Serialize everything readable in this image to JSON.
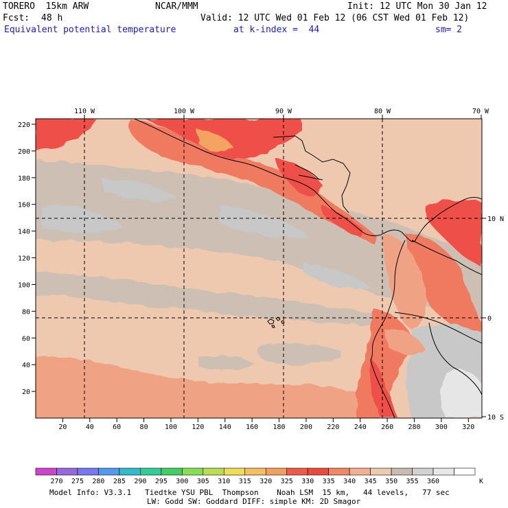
{
  "header": {
    "model": "TORERO  15km ARW",
    "org": "NCAR/MMM",
    "init": "Init: 12 UTC Mon 30 Jan 12",
    "fcst_label": "Fcst:",
    "fcst_value": "48 h",
    "valid": "Valid: 12 UTC Wed 01 Feb 12 (06 CST Wed 01 Feb 12)",
    "field": "Equivalent potential temperature",
    "level": "at k-index =  44",
    "smoothing": "sm= 2"
  },
  "map": {
    "lon_labels": [
      "110 W",
      "100 W",
      "90 W",
      "80 W",
      "70 W"
    ],
    "lat_labels": [
      "10 N",
      "0",
      "10 S"
    ],
    "y_ticks": [
      "20",
      "40",
      "60",
      "80",
      "100",
      "120",
      "140",
      "160",
      "180",
      "200",
      "220"
    ],
    "x_ticks": [
      "20",
      "40",
      "60",
      "80",
      "100",
      "120",
      "140",
      "160",
      "180",
      "200",
      "220",
      "240",
      "260",
      "280",
      "300",
      "320"
    ],
    "colors": {
      "c330": "#ef5048",
      "c335": "#f07a60",
      "c340": "#f0a384",
      "c345": "#eec9b0",
      "c350": "#cdbfb3",
      "c355": "#c8c8c8",
      "c360": "#e6e6e6",
      "c320": "#f4a460"
    }
  },
  "colorbar": {
    "labels": [
      "270",
      "275",
      "280",
      "285",
      "290",
      "295",
      "300",
      "305",
      "310",
      "315",
      "320",
      "325",
      "330",
      "335",
      "340",
      "345",
      "350",
      "355",
      "360"
    ],
    "unit": "K",
    "colors": [
      "#cc44cc",
      "#9966dd",
      "#7777ee",
      "#5599ee",
      "#33bbcc",
      "#33cc99",
      "#44cc66",
      "#88dd55",
      "#bbdd55",
      "#eedd55",
      "#f4c060",
      "#f2a060",
      "#ee5a4a",
      "#e84a3e",
      "#f08868",
      "#f3b090",
      "#eec9b0",
      "#c9bbb0",
      "#d2d2d2",
      "#e8e8e8",
      "#ffffff"
    ]
  },
  "model_info": {
    "line1": "Model Info: V3.3.1   Tiedtke YSU PBL  Thompson    Noah LSM  15 km,   44 levels,   77 sec",
    "line2": "LW: Godd SW: Goddard DIFF: simple KM: 2D Smagor"
  }
}
